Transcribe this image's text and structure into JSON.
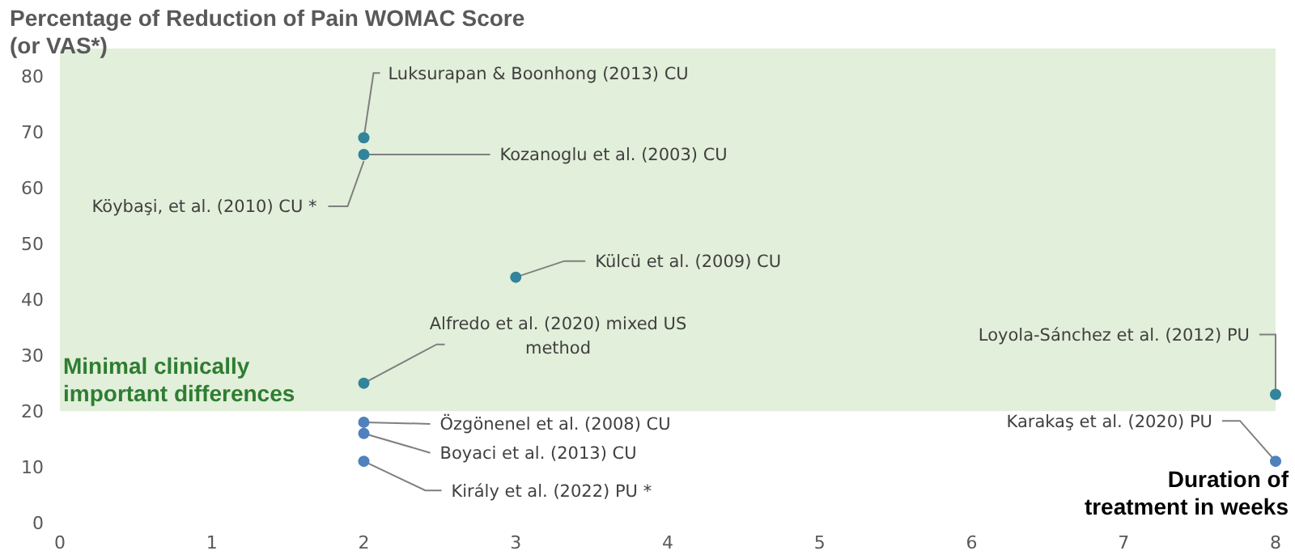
{
  "chart_data": {
    "type": "scatter",
    "ylabel": "Percentage of Reduction of Pain WOMAC Score (or VAS*)",
    "xlabel": "Duration of treatment in weeks",
    "x": [
      2,
      2,
      3,
      2,
      8,
      2,
      2,
      2,
      8
    ],
    "values": [
      69,
      66,
      44,
      25,
      23,
      18,
      16,
      11,
      11
    ],
    "colors": [
      "#31849b",
      "#31849b",
      "#31849b",
      "#31849b",
      "#31849b",
      "#4f81bd",
      "#4f81bd",
      "#4f81bd",
      "#4f81bd"
    ],
    "annotations": [
      {
        "text": "Luksurapan & Boonhong (2013) CU",
        "x": 2,
        "y": 69
      },
      {
        "text": "Kozanoglu et al. (2003) CU",
        "x": 2,
        "y": 66
      },
      {
        "text": "Köybaşi, et al. (2010) CU *",
        "x": 2,
        "y": 66
      },
      {
        "text": "Külcü et al. (2009) CU",
        "x": 3,
        "y": 44
      },
      {
        "text": "Alfredo et al. (2020) mixed US method",
        "x": 2,
        "y": 25
      },
      {
        "text": "Loyola-Sánchez et al. (2012) PU",
        "x": 8,
        "y": 23
      },
      {
        "text": "Özgönenel et al. (2008) CU",
        "x": 2,
        "y": 18
      },
      {
        "text": "Boyaci et al. (2013) CU",
        "x": 2,
        "y": 16
      },
      {
        "text": "Király et al. (2022) PU *",
        "x": 2,
        "y": 11
      },
      {
        "text": "Karakaş et al. (2020) PU",
        "x": 8,
        "y": 11
      }
    ],
    "bands": [
      {
        "axis": "y",
        "from": 20,
        "to": 85,
        "label": "Minimal clinically important differences",
        "color": "#e2efda"
      }
    ],
    "xlim": [
      0,
      8
    ],
    "xticks": [
      0,
      1,
      2,
      3,
      4,
      5,
      6,
      7,
      8
    ],
    "ylim": [
      0,
      85
    ],
    "yticks": [
      0,
      10,
      20,
      30,
      40,
      50,
      60,
      70,
      80
    ],
    "grid": false,
    "marker": "circle"
  }
}
